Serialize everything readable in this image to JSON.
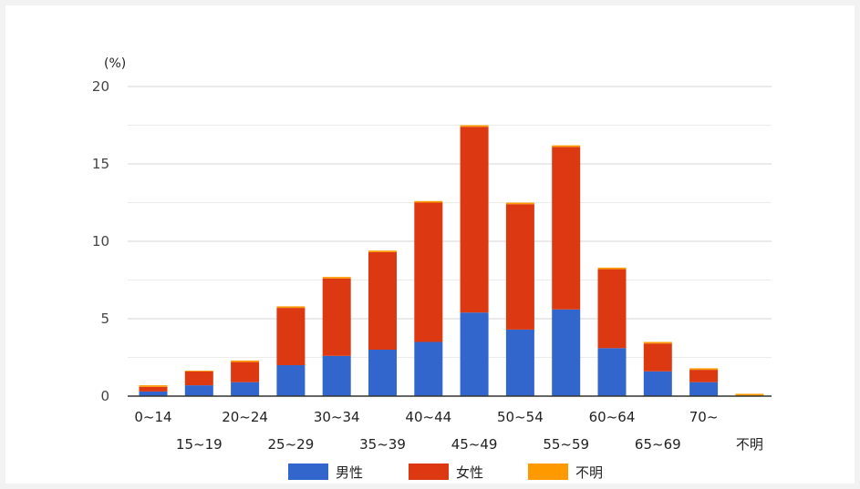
{
  "chart_data": {
    "type": "bar",
    "stacked": true,
    "unit_label": "(%)",
    "categories": [
      "0~14",
      "15~19",
      "20~24",
      "25~29",
      "30~34",
      "35~39",
      "40~44",
      "45~49",
      "50~54",
      "55~59",
      "60~64",
      "65~69",
      "70~",
      "不明"
    ],
    "series": [
      {
        "name": "男性",
        "color": "#3366cc",
        "values": [
          0.3,
          0.7,
          0.9,
          2.0,
          2.6,
          3.0,
          3.5,
          5.4,
          4.3,
          5.6,
          3.1,
          1.6,
          0.9,
          0.0
        ]
      },
      {
        "name": "女性",
        "color": "#dc3912",
        "values": [
          0.3,
          0.9,
          1.3,
          3.7,
          5.0,
          6.3,
          9.0,
          12.0,
          8.1,
          10.5,
          5.1,
          1.8,
          0.8,
          0.0
        ]
      },
      {
        "name": "不明",
        "color": "#ff9900",
        "values": [
          0.1,
          0.05,
          0.1,
          0.1,
          0.1,
          0.1,
          0.1,
          0.1,
          0.1,
          0.1,
          0.1,
          0.1,
          0.1,
          0.15
        ]
      }
    ],
    "ylim": [
      0,
      20
    ],
    "yticks": [
      "0",
      "5",
      "10",
      "15",
      "20"
    ],
    "grid": true,
    "legend_position": "bottom"
  }
}
